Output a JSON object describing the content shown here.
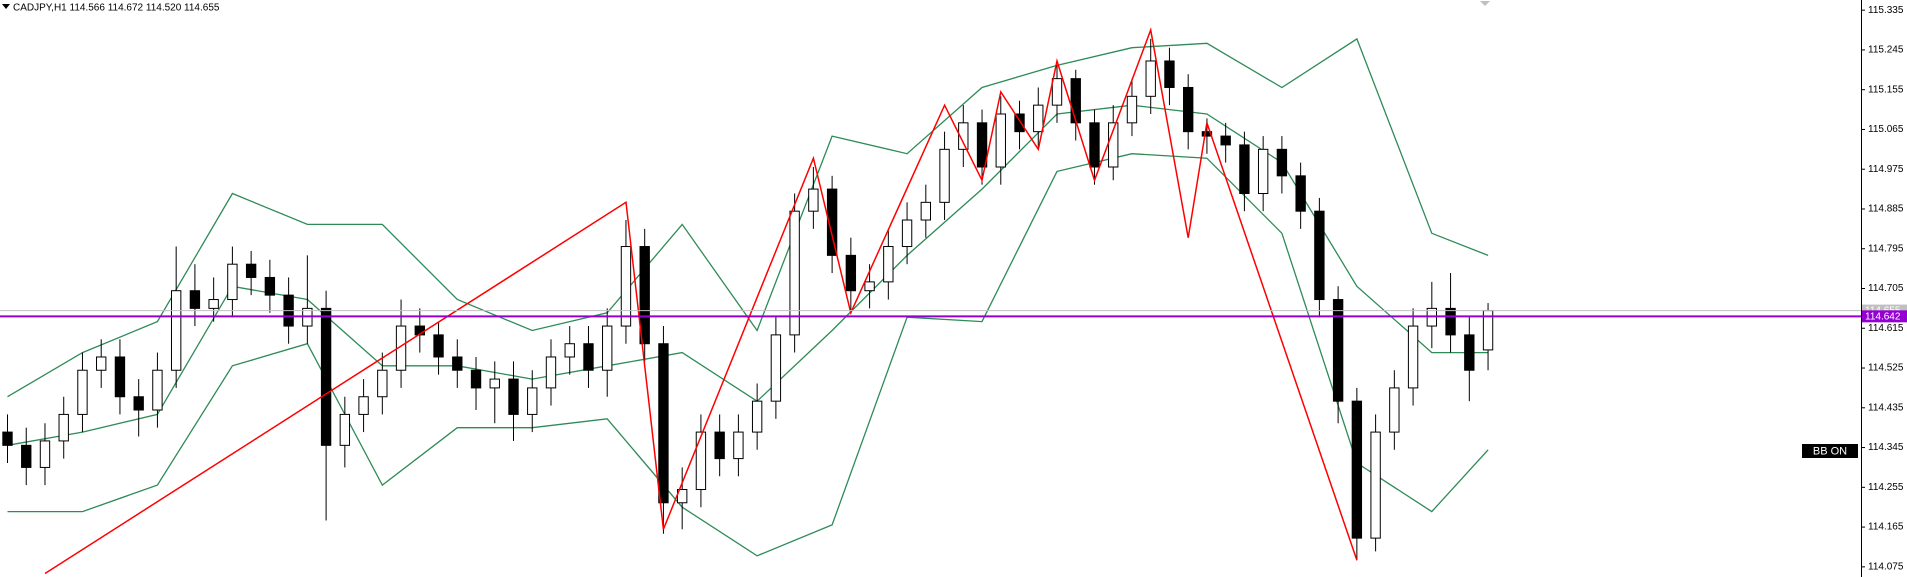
{
  "chart_data": {
    "type": "candlestick",
    "header": "CADJPY,H1  114.566 114.672 114.520 114.655",
    "open": [
      114.38,
      114.35,
      114.3,
      114.36,
      114.42,
      114.52,
      114.55,
      114.46,
      114.43,
      114.52,
      114.7,
      114.66,
      114.68,
      114.76,
      114.73,
      114.69,
      114.62,
      114.66,
      114.35,
      114.42,
      114.46,
      114.52,
      114.62,
      114.6,
      114.55,
      114.52,
      114.48,
      114.5,
      114.42,
      114.48,
      114.55,
      114.58,
      114.52,
      114.62,
      114.8,
      114.58,
      114.22,
      114.25,
      114.38,
      114.32,
      114.38,
      114.45,
      114.6,
      114.88,
      114.93,
      114.78,
      114.7,
      114.72,
      114.8,
      114.86,
      114.9,
      115.02,
      115.08,
      114.98,
      115.1,
      115.06,
      115.12,
      115.18,
      115.08,
      114.98,
      115.08,
      115.14,
      115.22,
      115.16,
      115.06,
      115.05,
      115.03,
      114.92,
      115.02,
      114.96,
      114.88,
      114.68,
      114.45,
      114.14,
      114.38,
      114.48,
      114.62,
      114.66,
      114.6,
      114.566
    ],
    "high": [
      114.42,
      114.39,
      114.4,
      114.46,
      114.56,
      114.59,
      114.59,
      114.5,
      114.56,
      114.8,
      114.76,
      114.73,
      114.8,
      114.79,
      114.77,
      114.73,
      114.78,
      114.7,
      114.46,
      114.5,
      114.56,
      114.68,
      114.66,
      114.63,
      114.59,
      114.55,
      114.54,
      114.54,
      114.52,
      114.59,
      114.62,
      114.62,
      114.66,
      114.86,
      114.84,
      114.62,
      114.3,
      114.42,
      114.42,
      114.42,
      114.49,
      114.64,
      114.92,
      114.98,
      114.96,
      114.82,
      114.76,
      114.84,
      114.9,
      114.94,
      115.06,
      115.12,
      115.11,
      115.14,
      115.13,
      115.16,
      115.21,
      115.2,
      115.11,
      115.12,
      115.18,
      115.27,
      115.25,
      115.19,
      115.09,
      115.08,
      115.06,
      115.05,
      115.05,
      114.99,
      114.91,
      114.71,
      114.48,
      114.42,
      114.52,
      114.66,
      114.72,
      114.74,
      114.64,
      114.672
    ],
    "low": [
      114.31,
      114.26,
      114.26,
      114.32,
      114.38,
      114.48,
      114.42,
      114.37,
      114.39,
      114.48,
      114.62,
      114.63,
      114.64,
      114.69,
      114.65,
      114.58,
      114.58,
      114.18,
      114.3,
      114.38,
      114.42,
      114.48,
      114.56,
      114.51,
      114.48,
      114.43,
      114.4,
      114.36,
      114.38,
      114.44,
      114.51,
      114.48,
      114.46,
      114.58,
      114.54,
      114.15,
      114.16,
      114.21,
      114.28,
      114.28,
      114.34,
      114.41,
      114.56,
      114.84,
      114.74,
      114.65,
      114.66,
      114.68,
      114.76,
      114.82,
      114.86,
      114.98,
      114.94,
      114.94,
      115.02,
      115.02,
      115.08,
      115.04,
      114.94,
      114.95,
      115.05,
      115.1,
      115.12,
      115.02,
      115.01,
      114.99,
      114.88,
      114.88,
      114.92,
      114.84,
      114.64,
      114.4,
      114.09,
      114.11,
      114.34,
      114.44,
      114.57,
      114.56,
      114.45,
      114.52
    ],
    "close": [
      114.35,
      114.3,
      114.36,
      114.42,
      114.52,
      114.55,
      114.46,
      114.43,
      114.52,
      114.7,
      114.66,
      114.68,
      114.76,
      114.73,
      114.69,
      114.62,
      114.66,
      114.35,
      114.42,
      114.46,
      114.52,
      114.62,
      114.6,
      114.55,
      114.52,
      114.48,
      114.5,
      114.42,
      114.48,
      114.55,
      114.58,
      114.52,
      114.62,
      114.8,
      114.58,
      114.22,
      114.25,
      114.38,
      114.32,
      114.38,
      114.45,
      114.6,
      114.88,
      114.93,
      114.78,
      114.7,
      114.72,
      114.8,
      114.86,
      114.9,
      115.02,
      115.08,
      114.98,
      115.1,
      115.06,
      115.12,
      115.18,
      115.08,
      114.98,
      115.08,
      115.14,
      115.22,
      115.16,
      115.06,
      115.05,
      115.03,
      114.92,
      115.02,
      114.96,
      114.88,
      114.68,
      114.45,
      114.14,
      114.38,
      114.48,
      114.62,
      114.66,
      114.6,
      114.52,
      114.655
    ],
    "bands": {
      "color": "#2e8b57",
      "x": [
        0,
        4,
        8,
        12,
        16,
        20,
        24,
        28,
        32,
        36,
        40,
        44,
        48,
        52,
        56,
        60,
        64,
        68,
        72,
        76,
        79
      ],
      "upper": [
        114.46,
        114.56,
        114.63,
        114.92,
        114.85,
        114.85,
        114.68,
        114.61,
        114.65,
        114.85,
        114.61,
        115.05,
        115.01,
        115.16,
        115.21,
        115.25,
        115.26,
        115.16,
        115.27,
        114.83,
        114.78
      ],
      "middle": [
        114.35,
        114.38,
        114.42,
        114.71,
        114.68,
        114.53,
        114.53,
        114.5,
        114.53,
        114.56,
        114.45,
        114.61,
        114.78,
        114.93,
        115.1,
        115.12,
        115.1,
        114.99,
        114.71,
        114.56,
        114.56
      ],
      "lower": [
        114.2,
        114.2,
        114.26,
        114.53,
        114.58,
        114.26,
        114.39,
        114.39,
        114.41,
        114.21,
        114.1,
        114.17,
        114.64,
        114.63,
        114.97,
        115.01,
        115.0,
        114.83,
        114.31,
        114.2,
        114.34
      ]
    },
    "zigzag": {
      "color": "#ff0000",
      "x": [
        2,
        33,
        35,
        43,
        45,
        50,
        52,
        53,
        55,
        56,
        58,
        61,
        63,
        64,
        72
      ],
      "y": [
        114.06,
        114.9,
        114.16,
        115.0,
        114.65,
        115.12,
        114.95,
        115.15,
        115.02,
        115.22,
        114.95,
        115.29,
        114.82,
        115.08,
        114.09
      ]
    },
    "levels": [
      {
        "value": 114.655,
        "color": "#c0c0c0"
      },
      {
        "value": 114.642,
        "color": "#9400d3"
      }
    ],
    "xlim": [
      -0.4,
      98.9
    ],
    "ylim": [
      114.052,
      115.358
    ],
    "yticks": [
      115.335,
      115.245,
      115.155,
      115.065,
      114.975,
      114.885,
      114.795,
      114.705,
      114.615,
      114.525,
      114.435,
      114.345,
      114.255,
      114.165,
      114.075
    ],
    "badge": "BB ON"
  }
}
